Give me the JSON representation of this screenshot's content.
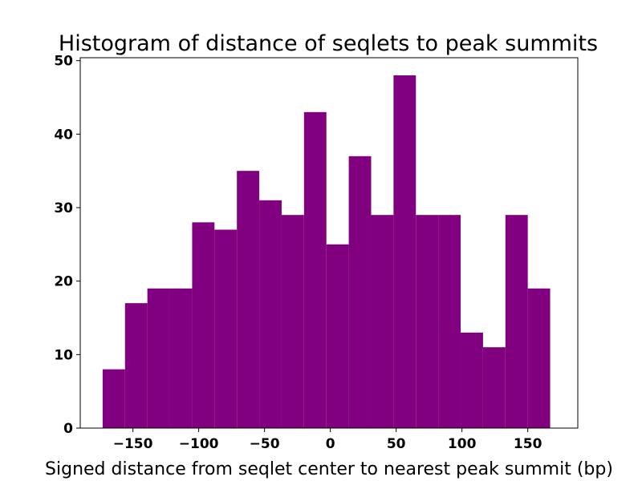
{
  "chart_data": {
    "type": "histogram",
    "title": "Histogram of distance of seqlets to peak summits",
    "xlabel": "Signed distance from seqlet center to nearest peak summit (bp)",
    "ylabel": "",
    "bar_color": "#800080",
    "xlim": [
      -190,
      188
    ],
    "ylim": [
      0,
      50.4
    ],
    "xticks": [
      -150,
      -100,
      -50,
      0,
      50,
      100,
      150
    ],
    "xtick_labels": [
      "−150",
      "−100",
      "−50",
      "0",
      "50",
      "100",
      "150"
    ],
    "yticks": [
      0,
      10,
      20,
      30,
      40,
      50
    ],
    "ytick_labels": [
      "0",
      "10",
      "20",
      "30",
      "40",
      "50"
    ],
    "grid": false,
    "bins": [
      {
        "x0": -173,
        "x1": -156,
        "count": 8
      },
      {
        "x0": -156,
        "x1": -139,
        "count": 17
      },
      {
        "x0": -139,
        "x1": -122,
        "count": 19
      },
      {
        "x0": -122,
        "x1": -105,
        "count": 19
      },
      {
        "x0": -105,
        "x1": -88,
        "count": 28
      },
      {
        "x0": -88,
        "x1": -71,
        "count": 27
      },
      {
        "x0": -71,
        "x1": -54,
        "count": 35
      },
      {
        "x0": -54,
        "x1": -37,
        "count": 31
      },
      {
        "x0": -37,
        "x1": -20,
        "count": 29
      },
      {
        "x0": -20,
        "x1": -3,
        "count": 43
      },
      {
        "x0": -3,
        "x1": 14,
        "count": 25
      },
      {
        "x0": 14,
        "x1": 31,
        "count": 37
      },
      {
        "x0": 31,
        "x1": 48,
        "count": 29
      },
      {
        "x0": 48,
        "x1": 65,
        "count": 48
      },
      {
        "x0": 65,
        "x1": 82,
        "count": 29
      },
      {
        "x0": 82,
        "x1": 99,
        "count": 29
      },
      {
        "x0": 99,
        "x1": 116,
        "count": 13
      },
      {
        "x0": 116,
        "x1": 133,
        "count": 11
      },
      {
        "x0": 133,
        "x1": 150,
        "count": 29
      },
      {
        "x0": 150,
        "x1": 167,
        "count": 19
      }
    ]
  }
}
